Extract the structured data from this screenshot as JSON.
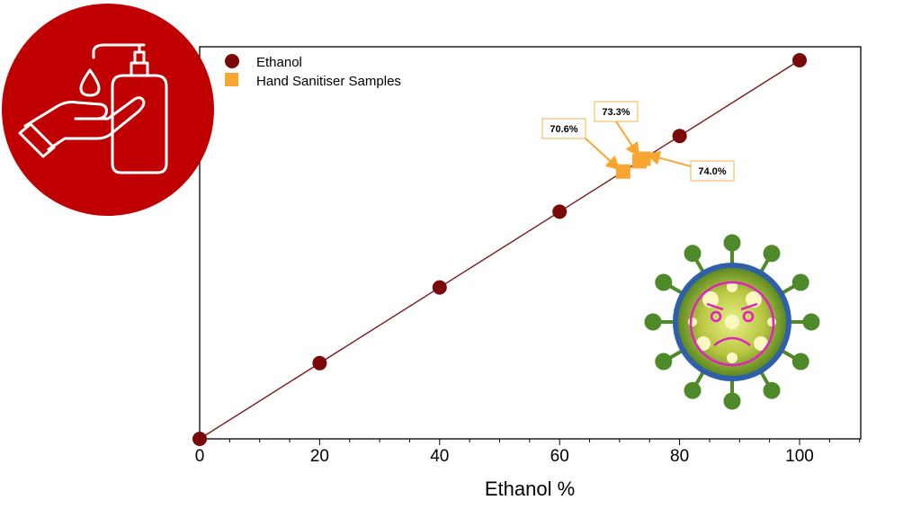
{
  "colors": {
    "ethanol_marker": "#7a0a0a",
    "fit_line": "#7a1a1a",
    "sample_marker": "#f9a630",
    "callout_border": "#f5b14a",
    "badge_red": "#c00000",
    "virus_green": "#4f8a2a",
    "virus_blue": "#2f5fa8",
    "virus_face": "#e020c0"
  },
  "icons": {
    "top_left": "hand-sanitizer-icon",
    "bottom_right": "virus-icon"
  },
  "chart_data": {
    "type": "scatter",
    "xlabel": "Ethanol %",
    "ylabel": "",
    "xlim": [
      0,
      110
    ],
    "x_ticks": [
      "0",
      "20",
      "40",
      "60",
      "80",
      "100"
    ],
    "grid": false,
    "legend_position": "top-left",
    "series": [
      {
        "name": "Ethanol",
        "marker": "circle",
        "x": [
          0,
          20,
          40,
          60,
          80,
          100
        ],
        "y": [
          0,
          20,
          40,
          60,
          80,
          100
        ]
      },
      {
        "name": "Hand Sanitiser Samples",
        "marker": "square",
        "x": [
          70.6,
          73.3,
          74.0
        ],
        "y": [
          70.6,
          73.3,
          74.0
        ]
      }
    ],
    "fit_line": {
      "x": [
        0,
        100
      ],
      "y": [
        0,
        100
      ]
    },
    "annotations": [
      {
        "text": "70.6%",
        "x": 70.6
      },
      {
        "text": "73.3%",
        "x": 73.3
      },
      {
        "text": "74.0%",
        "x": 74.0
      }
    ]
  }
}
